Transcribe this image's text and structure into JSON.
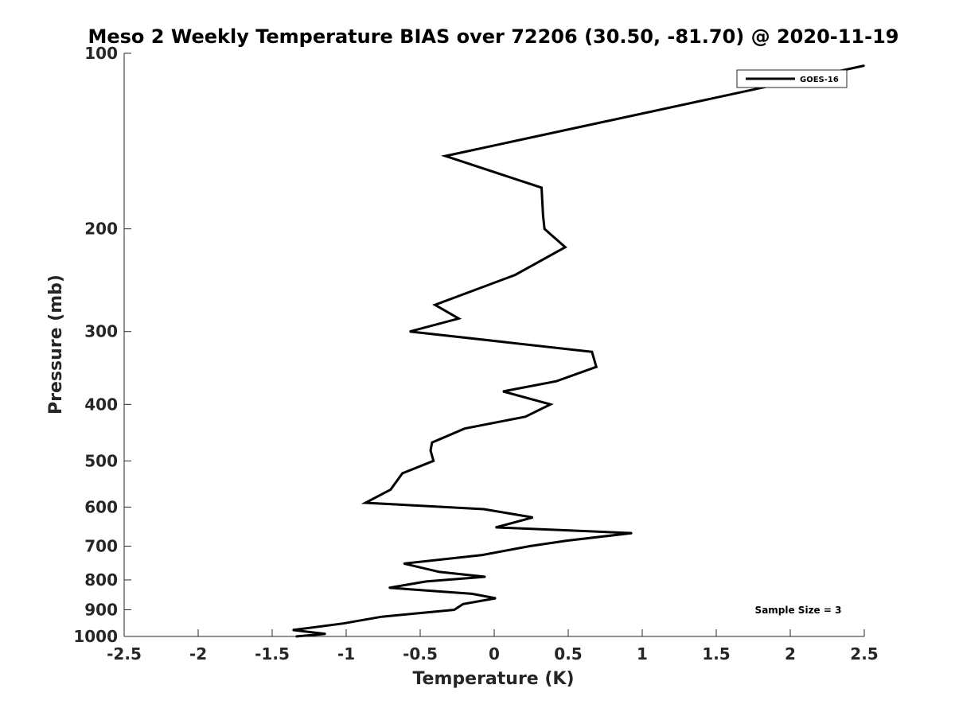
{
  "chart_data": {
    "type": "line",
    "title": "Meso 2 Weekly Temperature BIAS over 72206 (30.50, -81.70) @ 2020-11-19",
    "xlabel": "Temperature (K)",
    "ylabel": "Pressure (mb)",
    "xlim": [
      -2.5,
      2.5
    ],
    "ylim": [
      100,
      1000
    ],
    "y_scale": "log",
    "y_reversed": true,
    "grid": false,
    "x_ticks": [
      -2.5,
      -2,
      -1.5,
      -1,
      -0.5,
      0,
      0.5,
      1,
      1.5,
      2,
      2.5
    ],
    "x_tick_labels": [
      "-2.5",
      "-2",
      "-1.5",
      "-1",
      "-0.5",
      "0",
      "0.5",
      "1",
      "1.5",
      "2",
      "2.5"
    ],
    "y_ticks": [
      100,
      200,
      300,
      400,
      500,
      600,
      700,
      800,
      900,
      1000
    ],
    "y_tick_labels": [
      "100",
      "200",
      "300",
      "400",
      "500",
      "600",
      "700",
      "800",
      "900",
      "1000"
    ],
    "legend": {
      "position": "top-right",
      "entries": [
        "GOES-16"
      ]
    },
    "annotation": "Sample Size = 3",
    "series": [
      {
        "name": "GOES-16",
        "color": "#000000",
        "points": [
          {
            "x": 2.5,
            "y": 105
          },
          {
            "x": -0.33,
            "y": 150
          },
          {
            "x": 0.32,
            "y": 170
          },
          {
            "x": 0.33,
            "y": 190
          },
          {
            "x": 0.34,
            "y": 200
          },
          {
            "x": 0.48,
            "y": 215
          },
          {
            "x": 0.14,
            "y": 240
          },
          {
            "x": -0.4,
            "y": 270
          },
          {
            "x": -0.24,
            "y": 285
          },
          {
            "x": -0.57,
            "y": 300
          },
          {
            "x": 0.66,
            "y": 325
          },
          {
            "x": 0.69,
            "y": 345
          },
          {
            "x": 0.42,
            "y": 365
          },
          {
            "x": 0.06,
            "y": 380
          },
          {
            "x": 0.38,
            "y": 400
          },
          {
            "x": 0.21,
            "y": 420
          },
          {
            "x": -0.2,
            "y": 440
          },
          {
            "x": -0.42,
            "y": 465
          },
          {
            "x": -0.43,
            "y": 480
          },
          {
            "x": -0.41,
            "y": 500
          },
          {
            "x": -0.62,
            "y": 525
          },
          {
            "x": -0.7,
            "y": 560
          },
          {
            "x": -0.87,
            "y": 590
          },
          {
            "x": -0.07,
            "y": 605
          },
          {
            "x": 0.26,
            "y": 625
          },
          {
            "x": 0.01,
            "y": 650
          },
          {
            "x": 0.93,
            "y": 665
          },
          {
            "x": 0.49,
            "y": 685
          },
          {
            "x": 0.24,
            "y": 700
          },
          {
            "x": -0.08,
            "y": 725
          },
          {
            "x": -0.61,
            "y": 750
          },
          {
            "x": -0.37,
            "y": 775
          },
          {
            "x": -0.06,
            "y": 790
          },
          {
            "x": -0.46,
            "y": 805
          },
          {
            "x": -0.71,
            "y": 825
          },
          {
            "x": -0.15,
            "y": 845
          },
          {
            "x": 0.01,
            "y": 860
          },
          {
            "x": -0.21,
            "y": 880
          },
          {
            "x": -0.27,
            "y": 900
          },
          {
            "x": -0.76,
            "y": 925
          },
          {
            "x": -1.02,
            "y": 950
          },
          {
            "x": -1.36,
            "y": 975
          },
          {
            "x": -1.14,
            "y": 990
          },
          {
            "x": -1.34,
            "y": 1000
          }
        ]
      }
    ]
  }
}
